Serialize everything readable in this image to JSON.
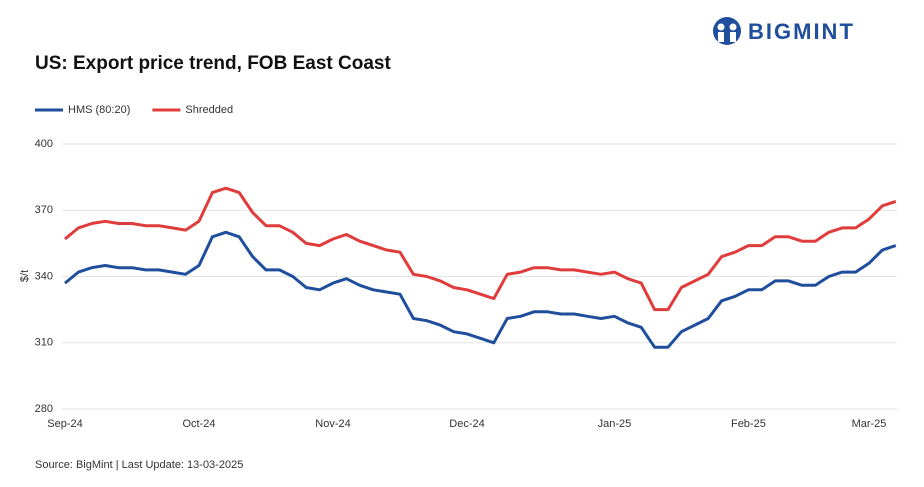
{
  "brand": "BIGMINT",
  "chart_data": {
    "type": "line",
    "title": "US: Export price trend, FOB East Coast",
    "y_label": "$/t",
    "source": "Source: BigMint | Last Update: 13-03-2025",
    "categories": [
      "Sep-24",
      null,
      null,
      null,
      null,
      null,
      null,
      null,
      null,
      null,
      "Oct-24",
      null,
      null,
      null,
      null,
      null,
      null,
      null,
      null,
      null,
      "Nov-24",
      null,
      null,
      null,
      null,
      null,
      null,
      null,
      null,
      null,
      "Dec-24",
      null,
      null,
      null,
      null,
      null,
      null,
      null,
      null,
      null,
      null,
      "Jan-25",
      null,
      null,
      null,
      null,
      null,
      null,
      null,
      null,
      null,
      "Feb-25",
      null,
      null,
      null,
      null,
      null,
      null,
      null,
      null,
      "Mar-25",
      null,
      null
    ],
    "series": [
      {
        "name": "HMS (80:20)",
        "color": "#1f4e9c",
        "values": [
          337,
          342,
          344,
          345,
          344,
          344,
          343,
          343,
          342,
          341,
          345,
          358,
          360,
          358,
          349,
          343,
          343,
          340,
          335,
          334,
          337,
          339,
          336,
          334,
          333,
          332,
          321,
          320,
          318,
          315,
          314,
          312,
          310,
          321,
          322,
          324,
          324,
          323,
          323,
          322,
          321,
          322,
          319,
          317,
          308,
          308,
          315,
          318,
          321,
          329,
          331,
          334,
          334,
          338,
          338,
          336,
          336,
          340,
          342,
          342,
          346,
          352,
          354
        ]
      },
      {
        "name": "Shredded",
        "color": "#e03c3c",
        "values": [
          357,
          362,
          364,
          365,
          364,
          364,
          363,
          363,
          362,
          361,
          365,
          378,
          380,
          378,
          369,
          363,
          363,
          360,
          355,
          354,
          357,
          359,
          356,
          354,
          352,
          351,
          341,
          340,
          338,
          335,
          334,
          332,
          330,
          341,
          342,
          344,
          344,
          343,
          343,
          342,
          341,
          342,
          339,
          337,
          325,
          325,
          335,
          338,
          341,
          349,
          351,
          354,
          354,
          358,
          358,
          356,
          356,
          360,
          362,
          362,
          366,
          372,
          374
        ]
      }
    ],
    "ylim": [
      280,
      400
    ],
    "yticks": [
      280,
      310,
      340,
      370,
      400
    ],
    "grid": true,
    "legend": "top-left"
  }
}
